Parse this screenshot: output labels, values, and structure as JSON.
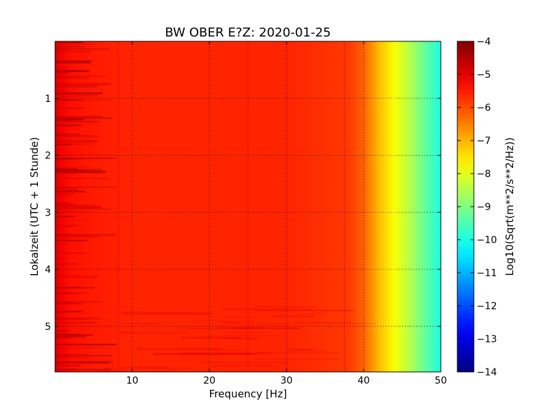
{
  "chart_data": {
    "type": "heatmap",
    "title": "BW OBER E?Z: 2020-01-25",
    "xlabel": "Frequency [Hz]",
    "ylabel": "Lokalzeit (UTC + 1 Stunde)",
    "xlim": [
      0,
      50
    ],
    "ylim": [
      0,
      5.8
    ],
    "y_inverted": true,
    "grid": true,
    "x_ticks": [
      10,
      20,
      30,
      40,
      50
    ],
    "y_ticks": [
      1,
      2,
      3,
      4,
      5
    ],
    "colorbar": {
      "label": "Log10(Sqrt(m**2/s**2/Hz))",
      "range": [
        -14,
        -4
      ],
      "ticks": [
        -4,
        -5,
        -6,
        -7,
        -8,
        -9,
        -10,
        -11,
        -12,
        -13,
        -14
      ],
      "colormap": "jet"
    },
    "spectrum_profile": {
      "frequency_hz": [
        0,
        0.5,
        2,
        5,
        10,
        20,
        30,
        38,
        40,
        42,
        44,
        46,
        48,
        50
      ],
      "log_amplitude": [
        -4.8,
        -5.1,
        -5.4,
        -5.5,
        -5.6,
        -5.6,
        -5.6,
        -5.8,
        -6.2,
        -7.1,
        -7.8,
        -8.5,
        -9.3,
        -10.0
      ]
    }
  }
}
